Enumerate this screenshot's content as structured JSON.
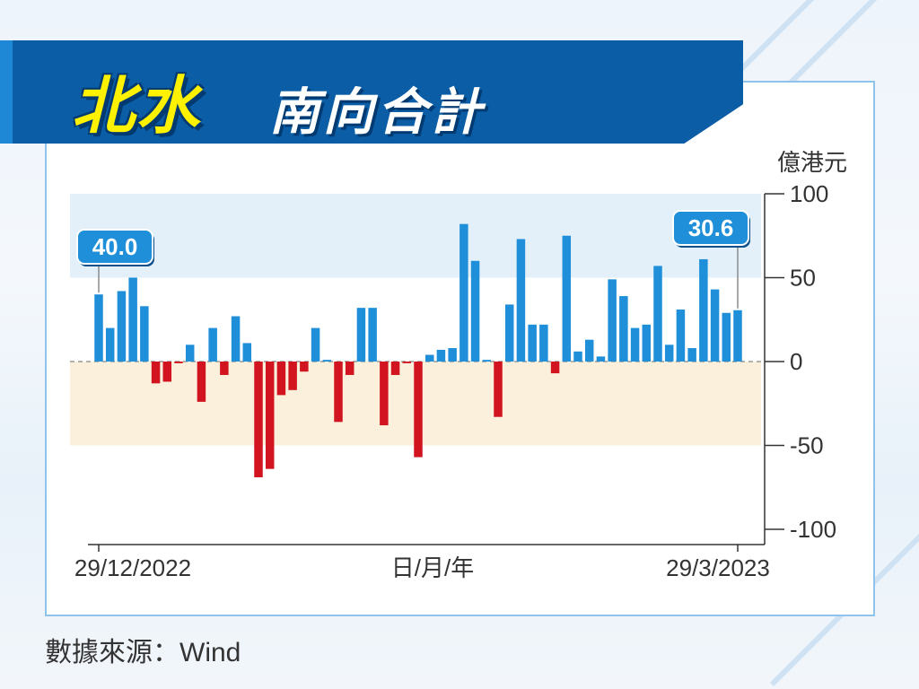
{
  "title": {
    "main": "北水",
    "sub": "南向合計"
  },
  "source": "數據來源：Wind",
  "colors": {
    "positive": "#1f8fd9",
    "negative": "#d1141f",
    "banner": "#0b5ea6",
    "title_yellow": "#fff200"
  },
  "chart_data": {
    "type": "bar",
    "ylabel": "億港元",
    "xlabel": "日/月/年",
    "ylim": [
      -100,
      100
    ],
    "yticks": [
      100,
      50,
      0,
      -50,
      -100
    ],
    "x_start_label": "29/12/2022",
    "x_end_label": "29/3/2023",
    "bands": [
      {
        "from": 50,
        "to": 100,
        "color": "#e3f0fa"
      },
      {
        "from": -50,
        "to": 0,
        "color": "#fbf0dc"
      }
    ],
    "annotations": [
      {
        "index": 0,
        "text": "40.0"
      },
      {
        "index": 56,
        "text": "30.6"
      }
    ],
    "values": [
      40.0,
      20,
      42,
      50,
      33,
      -13,
      -12,
      -1,
      10,
      -24,
      20,
      -8,
      27,
      11,
      -69,
      -64,
      -20,
      -17,
      -6,
      20,
      1,
      -36,
      -8,
      32,
      32,
      -38,
      -8,
      -1,
      -57,
      4,
      7,
      8,
      82,
      60,
      1,
      -33,
      34,
      73,
      22,
      22,
      -7,
      75,
      6,
      13,
      3,
      49,
      39,
      20,
      22,
      57,
      10,
      31,
      8,
      61,
      43,
      29,
      30.6
    ]
  }
}
